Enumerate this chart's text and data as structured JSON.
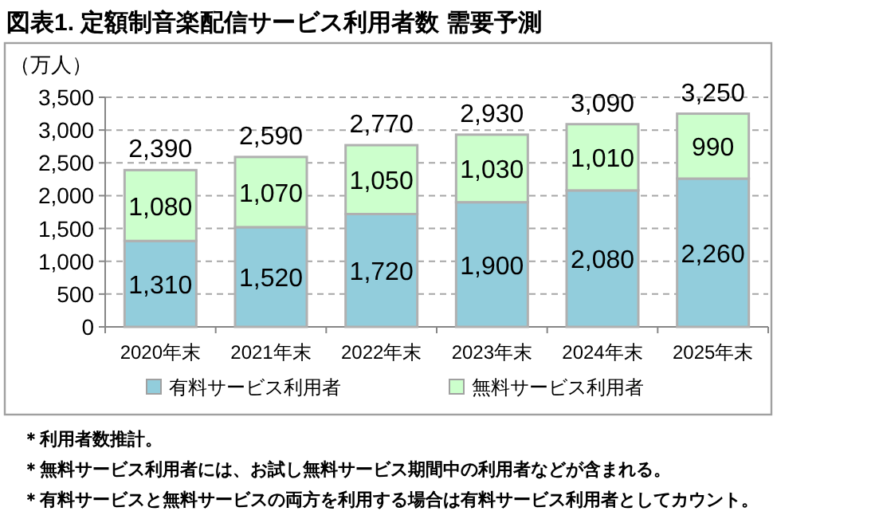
{
  "chart_data": {
    "type": "bar",
    "title": "図表1. 定額制音楽配信サービス利用者数 需要予測",
    "ylabel": "（万人）",
    "categories": [
      "2020年末",
      "2021年末",
      "2022年末",
      "2023年末",
      "2024年末",
      "2025年末"
    ],
    "series": [
      {
        "name": "有料サービス利用者",
        "color": "#92cddc",
        "values": [
          1310,
          1520,
          1720,
          1900,
          2080,
          2260
        ],
        "value_labels": [
          "1,310",
          "1,520",
          "1,720",
          "1,900",
          "2,080",
          "2,260"
        ]
      },
      {
        "name": "無料サービス利用者",
        "color": "#ccffcc",
        "values": [
          1080,
          1070,
          1050,
          1030,
          1010,
          990
        ],
        "value_labels": [
          "1,080",
          "1,070",
          "1,050",
          "1,030",
          "1,010",
          "990"
        ]
      }
    ],
    "stacked": true,
    "totals": [
      "2,390",
      "2,590",
      "2,770",
      "2,930",
      "3,090",
      "3,250"
    ],
    "ylim": [
      0,
      3500
    ],
    "yticks": [
      0,
      500,
      {
        "value": 1000,
        "label": "1,000"
      },
      {
        "value": 1500,
        "label": "1,500"
      },
      {
        "value": 2000,
        "label": "2,000"
      },
      {
        "value": 2500,
        "label": "2,500"
      },
      {
        "value": 3000,
        "label": "3,000"
      },
      {
        "value": 3500,
        "label": "3,500"
      }
    ],
    "grid": "y",
    "legend": "bottom",
    "annotations": [
      "＊利用者数推計。",
      "＊無料サービス利用者には、お試し無料サービス期間中の利用者などが含まれる。",
      "＊有料サービスと無料サービスの両方を利用する場合は有料サービス利用者としてカウント。"
    ]
  }
}
